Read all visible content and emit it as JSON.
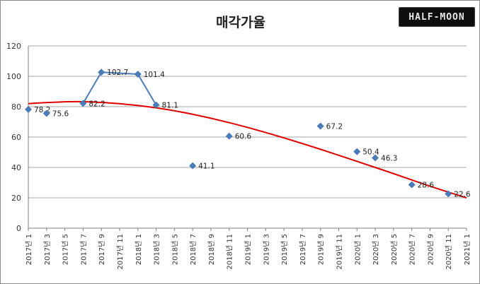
{
  "chart_data": {
    "type": "scatter",
    "title": "매각가율",
    "xlabel": "",
    "ylabel": "",
    "ylim": [
      0,
      120
    ],
    "yticks": [
      "0",
      "20",
      "40",
      "60",
      "80",
      "100",
      "120"
    ],
    "categories": [
      "2017년 1",
      "2017년 3",
      "2017년 5",
      "2017년 7",
      "2017년 9",
      "2017년 11",
      "2018년 1",
      "2018년 3",
      "2018년 5",
      "2018년 7",
      "2018년 9",
      "2018년 11",
      "2019년 1",
      "2019년 3",
      "2019년 5",
      "2019년 7",
      "2019년 9",
      "2019년 11",
      "2020년 1",
      "2020년 3",
      "2020년 5",
      "2020년 7",
      "2020년 9",
      "2020년 11",
      "2021년 1"
    ],
    "points": [
      {
        "x": "2017년 1",
        "y": 78.2,
        "label": "78.2"
      },
      {
        "x": "2017년 3",
        "y": 75.6,
        "label": "75.6"
      },
      {
        "x": "2017년 7",
        "y": 82.2,
        "label": "82.2"
      },
      {
        "x": "2017년 9",
        "y": 102.7,
        "label": "102.7"
      },
      {
        "x": "2018년 1",
        "y": 101.4,
        "label": "101.4"
      },
      {
        "x": "2018년 3",
        "y": 81.1,
        "label": "81.1"
      },
      {
        "x": "2018년 7",
        "y": 41.1,
        "label": "41.1"
      },
      {
        "x": "2018년 11",
        "y": 60.6,
        "label": "60.6"
      },
      {
        "x": "2019년 9",
        "y": 67.2,
        "label": "67.2"
      },
      {
        "x": "2020년 1",
        "y": 50.4,
        "label": "50.4"
      },
      {
        "x": "2020년 3",
        "y": 46.3,
        "label": "46.3"
      },
      {
        "x": "2020년 7",
        "y": 28.6,
        "label": "28.6"
      },
      {
        "x": "2020년 11",
        "y": 22.6,
        "label": "22.6"
      }
    ],
    "series_connected": [
      "2017년 7",
      "2017년 9",
      "2018년 1",
      "2018년 3"
    ],
    "trendline": {
      "type": "polynomial",
      "color": "#e00000",
      "values": [
        {
          "x": "2017년 1",
          "y": 82
        },
        {
          "x": "2017년 5",
          "y": 83.5
        },
        {
          "x": "2017년 9",
          "y": 83
        },
        {
          "x": "2018년 1",
          "y": 81
        },
        {
          "x": "2018년 5",
          "y": 77.5
        },
        {
          "x": "2018년 9",
          "y": 72.5
        },
        {
          "x": "2019년 1",
          "y": 66.5
        },
        {
          "x": "2019년 5",
          "y": 59.5
        },
        {
          "x": "2019년 9",
          "y": 52
        },
        {
          "x": "2020년 1",
          "y": 44
        },
        {
          "x": "2020년 5",
          "y": 36
        },
        {
          "x": "2020년 9",
          "y": 27.5
        },
        {
          "x": "2021년 1",
          "y": 20
        }
      ]
    },
    "marker_color": "#4a7ebb",
    "grid": true,
    "legend": "none"
  },
  "logo": {
    "text": "HALF-MOON"
  }
}
